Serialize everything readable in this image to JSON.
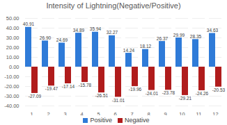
{
  "chart_data": {
    "type": "bar",
    "title": "Intensity of Lightning(Negative/Positive)",
    "categories": [
      "1",
      "2",
      "3",
      "4",
      "5",
      "6",
      "7",
      "8",
      "9",
      "10",
      "11",
      "12"
    ],
    "series": [
      {
        "name": "Positive",
        "color": "#2f7bd8",
        "values": [
          40.91,
          26.9,
          24.69,
          34.89,
          35.94,
          32.27,
          14.24,
          18.12,
          26.37,
          29.99,
          28.35,
          34.63
        ],
        "value_labels": [
          "40.91",
          "26.90",
          "24.69",
          "34.89",
          "35.94",
          "32.27",
          "14.24",
          "18.12",
          "26.37",
          "29.99",
          "28.35",
          "34.63"
        ]
      },
      {
        "name": "Negative",
        "color": "#b01c1c",
        "values": [
          -27.09,
          -19.47,
          -17.14,
          -15.78,
          -26.51,
          -31.01,
          -19.96,
          -24.01,
          -23.78,
          -29.21,
          -24.26,
          -20.53
        ],
        "value_labels": [
          "-27.09",
          "-19.47",
          "-17.14",
          "-15.78",
          "-26.51",
          "-31.01",
          "-19.96",
          "-24.01",
          "-23.78",
          "-29.21",
          "-24.26",
          "-20.53"
        ]
      }
    ],
    "ylim": [
      -40,
      50
    ],
    "yticks": [
      {
        "value": -40,
        "label": "-40.00"
      },
      {
        "value": -30,
        "label": "-30.00"
      },
      {
        "value": -20,
        "label": "-20.00"
      },
      {
        "value": -10,
        "label": "-10.00"
      },
      {
        "value": 0,
        "label": "0.00"
      },
      {
        "value": 10,
        "label": "10.00"
      },
      {
        "value": 20,
        "label": "20.00"
      },
      {
        "value": 30,
        "label": "30.00"
      },
      {
        "value": 40,
        "label": "40.00"
      },
      {
        "value": 50,
        "label": "50.00"
      }
    ],
    "grid": true,
    "data_labels": true,
    "legend": "bottom"
  }
}
